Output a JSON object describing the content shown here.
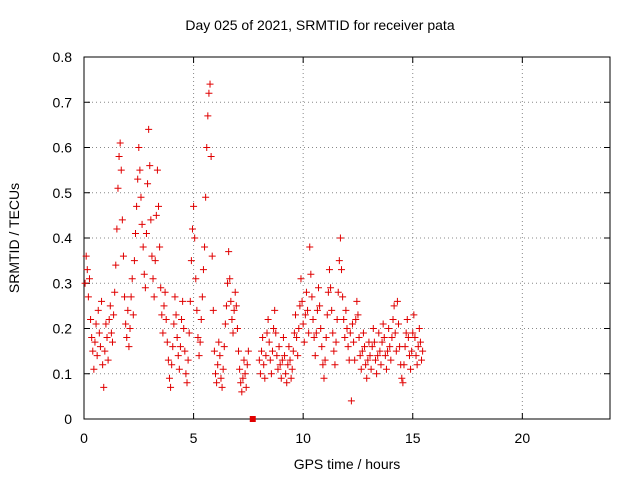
{
  "chart_data": {
    "type": "scatter",
    "title": "Day 025 of 2021, SRMTID for receiver pata",
    "xlabel": "GPS time / hours",
    "ylabel": "SRMTID / TECUs",
    "xlim": [
      0,
      24
    ],
    "ylim": [
      0,
      0.8
    ],
    "xticks": [
      0,
      5,
      10,
      15,
      20
    ],
    "xtick_labels": [
      "0",
      "5",
      "10",
      "15",
      "20"
    ],
    "yticks": [
      0,
      0.1,
      0.2,
      0.3,
      0.4,
      0.5,
      0.6,
      0.7,
      0.8
    ],
    "ytick_labels": [
      "0",
      "0.1",
      "0.2",
      "0.3",
      "0.4",
      "0.5",
      "0.6",
      "0.7",
      "0.8"
    ],
    "grid": true,
    "marker": "plus",
    "color": "#e00000",
    "series": [
      {
        "name": "SRMTID",
        "points": [
          [
            0.05,
            0.3
          ],
          [
            0.1,
            0.36
          ],
          [
            0.15,
            0.33
          ],
          [
            0.2,
            0.27
          ],
          [
            0.25,
            0.31
          ],
          [
            0.3,
            0.22
          ],
          [
            0.35,
            0.18
          ],
          [
            0.4,
            0.15
          ],
          [
            0.45,
            0.11
          ],
          [
            0.5,
            0.17
          ],
          [
            0.55,
            0.21
          ],
          [
            0.6,
            0.14
          ],
          [
            0.65,
            0.24
          ],
          [
            0.7,
            0.19
          ],
          [
            0.75,
            0.16
          ],
          [
            0.8,
            0.26
          ],
          [
            0.85,
            0.12
          ],
          [
            0.9,
            0.07
          ],
          [
            0.95,
            0.15
          ],
          [
            1.0,
            0.21
          ],
          [
            1.05,
            0.18
          ],
          [
            1.1,
            0.13
          ],
          [
            1.15,
            0.22
          ],
          [
            1.2,
            0.25
          ],
          [
            1.25,
            0.19
          ],
          [
            1.3,
            0.17
          ],
          [
            1.35,
            0.23
          ],
          [
            1.4,
            0.28
          ],
          [
            1.45,
            0.34
          ],
          [
            1.5,
            0.42
          ],
          [
            1.55,
            0.51
          ],
          [
            1.6,
            0.58
          ],
          [
            1.65,
            0.61
          ],
          [
            1.7,
            0.55
          ],
          [
            1.75,
            0.44
          ],
          [
            1.8,
            0.36
          ],
          [
            1.85,
            0.27
          ],
          [
            1.9,
            0.21
          ],
          [
            1.95,
            0.18
          ],
          [
            2.0,
            0.24
          ],
          [
            2.05,
            0.16
          ],
          [
            2.1,
            0.2
          ],
          [
            2.15,
            0.27
          ],
          [
            2.2,
            0.31
          ],
          [
            2.25,
            0.23
          ],
          [
            2.3,
            0.35
          ],
          [
            2.35,
            0.41
          ],
          [
            2.4,
            0.47
          ],
          [
            2.45,
            0.53
          ],
          [
            2.5,
            0.6
          ],
          [
            2.55,
            0.55
          ],
          [
            2.6,
            0.49
          ],
          [
            2.65,
            0.43
          ],
          [
            2.7,
            0.38
          ],
          [
            2.75,
            0.32
          ],
          [
            2.8,
            0.29
          ],
          [
            2.85,
            0.41
          ],
          [
            2.9,
            0.52
          ],
          [
            2.95,
            0.64
          ],
          [
            3.0,
            0.56
          ],
          [
            3.05,
            0.44
          ],
          [
            3.1,
            0.36
          ],
          [
            3.15,
            0.31
          ],
          [
            3.2,
            0.27
          ],
          [
            3.25,
            0.35
          ],
          [
            3.3,
            0.45
          ],
          [
            3.35,
            0.55
          ],
          [
            3.4,
            0.47
          ],
          [
            3.45,
            0.38
          ],
          [
            3.5,
            0.29
          ],
          [
            3.55,
            0.23
          ],
          [
            3.6,
            0.19
          ],
          [
            3.65,
            0.25
          ],
          [
            3.7,
            0.28
          ],
          [
            3.75,
            0.22
          ],
          [
            3.8,
            0.17
          ],
          [
            3.85,
            0.13
          ],
          [
            3.9,
            0.09
          ],
          [
            3.95,
            0.07
          ],
          [
            4.0,
            0.12
          ],
          [
            4.05,
            0.16
          ],
          [
            4.1,
            0.21
          ],
          [
            4.15,
            0.27
          ],
          [
            4.2,
            0.23
          ],
          [
            4.25,
            0.18
          ],
          [
            4.3,
            0.14
          ],
          [
            4.35,
            0.11
          ],
          [
            4.4,
            0.16
          ],
          [
            4.45,
            0.22
          ],
          [
            4.5,
            0.26
          ],
          [
            4.55,
            0.2
          ],
          [
            4.6,
            0.15
          ],
          [
            4.65,
            0.1
          ],
          [
            4.7,
            0.08
          ],
          [
            4.75,
            0.13
          ],
          [
            4.8,
            0.19
          ],
          [
            4.85,
            0.26
          ],
          [
            4.9,
            0.35
          ],
          [
            4.95,
            0.42
          ],
          [
            5.0,
            0.47
          ],
          [
            5.05,
            0.4
          ],
          [
            5.1,
            0.31
          ],
          [
            5.15,
            0.24
          ],
          [
            5.2,
            0.18
          ],
          [
            5.25,
            0.14
          ],
          [
            5.3,
            0.17
          ],
          [
            5.35,
            0.22
          ],
          [
            5.4,
            0.27
          ],
          [
            5.45,
            0.33
          ],
          [
            5.5,
            0.38
          ],
          [
            5.55,
            0.49
          ],
          [
            5.6,
            0.6
          ],
          [
            5.65,
            0.67
          ],
          [
            5.7,
            0.72
          ],
          [
            5.75,
            0.74
          ],
          [
            5.8,
            0.58
          ],
          [
            5.85,
            0.36
          ],
          [
            5.9,
            0.24
          ],
          [
            5.95,
            0.15
          ],
          [
            6.0,
            0.1
          ],
          [
            6.05,
            0.08
          ],
          [
            6.1,
            0.12
          ],
          [
            6.15,
            0.17
          ],
          [
            6.2,
            0.14
          ],
          [
            6.25,
            0.09
          ],
          [
            6.3,
            0.07
          ],
          [
            6.35,
            0.11
          ],
          [
            6.4,
            0.16
          ],
          [
            6.45,
            0.21
          ],
          [
            6.5,
            0.25
          ],
          [
            6.55,
            0.3
          ],
          [
            6.6,
            0.37
          ],
          [
            6.65,
            0.31
          ],
          [
            6.7,
            0.26
          ],
          [
            6.75,
            0.22
          ],
          [
            6.8,
            0.19
          ],
          [
            6.85,
            0.24
          ],
          [
            6.9,
            0.28
          ],
          [
            6.95,
            0.25
          ],
          [
            7.0,
            0.2
          ],
          [
            7.05,
            0.15
          ],
          [
            7.1,
            0.11
          ],
          [
            7.15,
            0.08
          ],
          [
            7.2,
            0.06
          ],
          [
            7.25,
            0.09
          ],
          [
            7.3,
            0.13
          ],
          [
            7.35,
            0.1
          ],
          [
            7.4,
            0.07
          ],
          [
            7.45,
            0.12
          ],
          [
            7.5,
            0.15
          ],
          [
            8.0,
            0.13
          ],
          [
            8.05,
            0.1
          ],
          [
            8.1,
            0.15
          ],
          [
            8.15,
            0.18
          ],
          [
            8.2,
            0.12
          ],
          [
            8.25,
            0.09
          ],
          [
            8.3,
            0.14
          ],
          [
            8.35,
            0.19
          ],
          [
            8.4,
            0.22
          ],
          [
            8.45,
            0.17
          ],
          [
            8.5,
            0.13
          ],
          [
            8.55,
            0.1
          ],
          [
            8.6,
            0.15
          ],
          [
            8.65,
            0.2
          ],
          [
            8.7,
            0.24
          ],
          [
            8.75,
            0.19
          ],
          [
            8.8,
            0.14
          ],
          [
            8.85,
            0.11
          ],
          [
            8.9,
            0.16
          ],
          [
            8.95,
            0.12
          ],
          [
            9.0,
            0.09
          ],
          [
            9.05,
            0.13
          ],
          [
            9.1,
            0.18
          ],
          [
            9.15,
            0.14
          ],
          [
            9.2,
            0.1
          ],
          [
            9.25,
            0.08
          ],
          [
            9.3,
            0.12
          ],
          [
            9.35,
            0.16
          ],
          [
            9.4,
            0.13
          ],
          [
            9.45,
            0.09
          ],
          [
            9.5,
            0.11
          ],
          [
            9.55,
            0.15
          ],
          [
            9.6,
            0.19
          ],
          [
            9.65,
            0.23
          ],
          [
            9.7,
            0.18
          ],
          [
            9.75,
            0.14
          ],
          [
            9.8,
            0.2
          ],
          [
            9.85,
            0.25
          ],
          [
            9.9,
            0.31
          ],
          [
            9.95,
            0.26
          ],
          [
            10.0,
            0.21
          ],
          [
            10.05,
            0.17
          ],
          [
            10.1,
            0.23
          ],
          [
            10.15,
            0.28
          ],
          [
            10.2,
            0.24
          ],
          [
            10.25,
            0.19
          ],
          [
            10.3,
            0.38
          ],
          [
            10.35,
            0.32
          ],
          [
            10.4,
            0.27
          ],
          [
            10.45,
            0.22
          ],
          [
            10.5,
            0.18
          ],
          [
            10.55,
            0.14
          ],
          [
            10.6,
            0.19
          ],
          [
            10.65,
            0.24
          ],
          [
            10.7,
            0.29
          ],
          [
            10.75,
            0.25
          ],
          [
            10.8,
            0.2
          ],
          [
            10.85,
            0.16
          ],
          [
            10.9,
            0.12
          ],
          [
            10.95,
            0.09
          ],
          [
            11.0,
            0.13
          ],
          [
            11.05,
            0.18
          ],
          [
            11.1,
            0.23
          ],
          [
            11.15,
            0.28
          ],
          [
            11.2,
            0.33
          ],
          [
            11.25,
            0.29
          ],
          [
            11.3,
            0.24
          ],
          [
            11.35,
            0.19
          ],
          [
            11.4,
            0.15
          ],
          [
            11.45,
            0.12
          ],
          [
            11.5,
            0.17
          ],
          [
            11.55,
            0.22
          ],
          [
            11.6,
            0.28
          ],
          [
            11.65,
            0.35
          ],
          [
            11.7,
            0.4
          ],
          [
            11.75,
            0.33
          ],
          [
            11.8,
            0.27
          ],
          [
            11.85,
            0.22
          ],
          [
            11.9,
            0.18
          ],
          [
            11.95,
            0.24
          ],
          [
            12.0,
            0.2
          ],
          [
            12.05,
            0.16
          ],
          [
            12.1,
            0.13
          ],
          [
            12.15,
            0.19
          ],
          [
            12.2,
            0.04
          ],
          [
            12.25,
            0.21
          ],
          [
            12.3,
            0.17
          ],
          [
            12.35,
            0.13
          ],
          [
            12.4,
            0.22
          ],
          [
            12.45,
            0.26
          ],
          [
            12.5,
            0.23
          ],
          [
            12.55,
            0.18
          ],
          [
            12.6,
            0.14
          ],
          [
            12.65,
            0.11
          ],
          [
            12.7,
            0.15
          ],
          [
            12.75,
            0.19
          ],
          [
            12.8,
            0.16
          ],
          [
            12.85,
            0.12
          ],
          [
            12.9,
            0.09
          ],
          [
            12.95,
            0.13
          ],
          [
            13.0,
            0.17
          ],
          [
            13.05,
            0.14
          ],
          [
            13.1,
            0.11
          ],
          [
            13.15,
            0.16
          ],
          [
            13.2,
            0.2
          ],
          [
            13.25,
            0.17
          ],
          [
            13.3,
            0.13
          ],
          [
            13.35,
            0.1
          ],
          [
            13.4,
            0.14
          ],
          [
            13.45,
            0.19
          ],
          [
            13.5,
            0.15
          ],
          [
            13.55,
            0.12
          ],
          [
            13.6,
            0.17
          ],
          [
            13.65,
            0.21
          ],
          [
            13.7,
            0.18
          ],
          [
            13.75,
            0.14
          ],
          [
            13.8,
            0.11
          ],
          [
            13.85,
            0.15
          ],
          [
            13.9,
            0.2
          ],
          [
            13.95,
            0.16
          ],
          [
            14.0,
            0.13
          ],
          [
            14.05,
            0.18
          ],
          [
            14.1,
            0.22
          ],
          [
            14.15,
            0.25
          ],
          [
            14.2,
            0.19
          ],
          [
            14.25,
            0.15
          ],
          [
            14.3,
            0.26
          ],
          [
            14.35,
            0.21
          ],
          [
            14.4,
            0.16
          ],
          [
            14.45,
            0.12
          ],
          [
            14.5,
            0.09
          ],
          [
            14.55,
            0.08
          ],
          [
            14.6,
            0.12
          ],
          [
            14.65,
            0.16
          ],
          [
            14.7,
            0.19
          ],
          [
            14.75,
            0.22
          ],
          [
            14.8,
            0.18
          ],
          [
            14.85,
            0.14
          ],
          [
            14.9,
            0.11
          ],
          [
            14.95,
            0.15
          ],
          [
            15.0,
            0.19
          ],
          [
            15.05,
            0.23
          ],
          [
            15.1,
            0.18
          ],
          [
            15.15,
            0.14
          ],
          [
            15.2,
            0.12
          ],
          [
            15.25,
            0.16
          ],
          [
            15.3,
            0.2
          ],
          [
            15.35,
            0.17
          ],
          [
            15.4,
            0.13
          ],
          [
            15.45,
            0.15
          ]
        ]
      }
    ],
    "extra_marks": [
      {
        "x": 7.7,
        "y": 0.0,
        "shape": "square",
        "color": "#e00000"
      }
    ]
  }
}
